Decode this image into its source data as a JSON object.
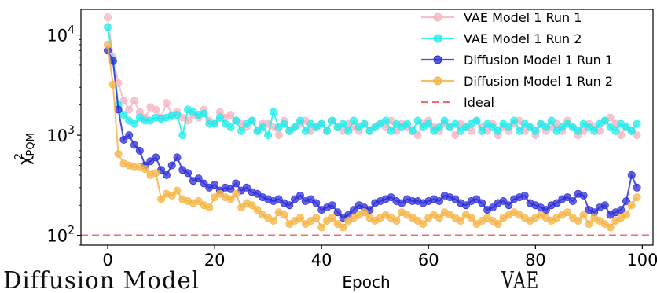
{
  "chart_data": {
    "type": "line",
    "title": "",
    "xlabel": "Epoch",
    "ylabel": "χ²PQM",
    "ylabel_main": "χ",
    "ylabel_sup": "2",
    "ylabel_sub": "PQM",
    "xlim": [
      -5,
      102
    ],
    "ylim": [
      80,
      18000
    ],
    "yscale": "log",
    "x_ticks": [
      0,
      20,
      40,
      60,
      80,
      100
    ],
    "x_tick_labels": [
      "0",
      "20",
      "40",
      "60",
      "80",
      "100"
    ],
    "y_ticks": [
      100,
      1000,
      10000
    ],
    "y_tick_base": [
      "10",
      "10",
      "10"
    ],
    "y_tick_exp": [
      "2",
      "3",
      "4"
    ],
    "grid": false,
    "legend_position": "top-right",
    "x": [
      0,
      1,
      2,
      3,
      4,
      5,
      6,
      7,
      8,
      9,
      10,
      11,
      12,
      13,
      14,
      15,
      16,
      17,
      18,
      19,
      20,
      21,
      22,
      23,
      24,
      25,
      26,
      27,
      28,
      29,
      30,
      31,
      32,
      33,
      34,
      35,
      36,
      37,
      38,
      39,
      40,
      41,
      42,
      43,
      44,
      45,
      46,
      47,
      48,
      49,
      50,
      51,
      52,
      53,
      54,
      55,
      56,
      57,
      58,
      59,
      60,
      61,
      62,
      63,
      64,
      65,
      66,
      67,
      68,
      69,
      70,
      71,
      72,
      73,
      74,
      75,
      76,
      77,
      78,
      79,
      80,
      81,
      82,
      83,
      84,
      85,
      86,
      87,
      88,
      89,
      90,
      91,
      92,
      93,
      94,
      95,
      96,
      97,
      98,
      99
    ],
    "series": [
      {
        "name": "VAE Model 1 Run 1",
        "color": "#f4b6c2",
        "values": [
          15000,
          6000,
          3300,
          2200,
          1800,
          2200,
          1700,
          1500,
          1900,
          1800,
          1500,
          2100,
          1600,
          1700,
          1500,
          1400,
          1600,
          1500,
          1800,
          1400,
          1300,
          1700,
          1500,
          1600,
          1400,
          1300,
          1200,
          1400,
          1100,
          1300,
          1300,
          1200,
          1000,
          1400,
          1100,
          1200,
          1300,
          1400,
          1100,
          1200,
          1300,
          1100,
          1400,
          1200,
          1100,
          1300,
          1200,
          1100,
          1300,
          1100,
          1200,
          1300,
          1200,
          1400,
          1100,
          1300,
          1200,
          1100,
          1000,
          1300,
          1400,
          1200,
          1100,
          1300,
          1200,
          1000,
          1300,
          1200,
          1100,
          1400,
          1200,
          1100,
          1300,
          1000,
          1200,
          1100,
          1300,
          1400,
          1100,
          1200,
          1000,
          1300,
          1100,
          1200,
          1300,
          1100,
          1400,
          1200,
          1000,
          1100,
          1300,
          1200,
          1100,
          1400,
          1500,
          1300,
          1000,
          1200,
          1100,
          1000
        ]
      },
      {
        "name": "VAE Model 1 Run 2",
        "color": "#22ecec",
        "values": [
          12000,
          5500,
          2000,
          1600,
          1400,
          1300,
          1500,
          1400,
          1400,
          1500,
          1450,
          1500,
          1550,
          1600,
          1000,
          1800,
          1700,
          1600,
          1650,
          1300,
          1300,
          1500,
          1300,
          1200,
          1400,
          1100,
          1300,
          1400,
          1100,
          1200,
          1000,
          1700,
          1200,
          1300,
          1100,
          1200,
          1400,
          1100,
          1300,
          1200,
          1300,
          1100,
          1400,
          1200,
          1300,
          1100,
          1400,
          1200,
          1300,
          1100,
          1200,
          1300,
          1400,
          1100,
          1300,
          1200,
          1300,
          1100,
          1400,
          1200,
          1300,
          1100,
          1200,
          1400,
          1200,
          1300,
          1100,
          1200,
          1300,
          1400,
          1100,
          1300,
          1200,
          1100,
          1300,
          1200,
          1400,
          1100,
          1300,
          1200,
          1100,
          1300,
          1200,
          1400,
          1100,
          1200,
          1300,
          1200,
          1100,
          1300,
          1200,
          1100,
          1300,
          1400,
          1200,
          1100,
          1300,
          1200,
          1100,
          1300
        ]
      },
      {
        "name": "Diffusion Model 1 Run 1",
        "color": "#2f2fd8",
        "values": [
          7000,
          5500,
          1800,
          900,
          1000,
          800,
          700,
          500,
          550,
          600,
          450,
          400,
          500,
          600,
          450,
          420,
          350,
          370,
          330,
          300,
          320,
          280,
          300,
          290,
          330,
          280,
          300,
          270,
          260,
          240,
          230,
          220,
          230,
          210,
          200,
          230,
          250,
          220,
          230,
          210,
          180,
          190,
          200,
          170,
          150,
          160,
          180,
          200,
          190,
          180,
          210,
          220,
          230,
          240,
          220,
          210,
          230,
          220,
          220,
          210,
          220,
          230,
          220,
          250,
          240,
          230,
          210,
          200,
          220,
          230,
          210,
          180,
          190,
          210,
          220,
          200,
          230,
          240,
          250,
          210,
          200,
          190,
          180,
          200,
          210,
          230,
          240,
          220,
          260,
          250,
          180,
          170,
          190,
          200,
          160,
          170,
          180,
          220,
          400,
          300
        ]
      },
      {
        "name": "Diffusion Model 1 Run 2",
        "color": "#f5b445",
        "values": [
          8000,
          3200,
          650,
          520,
          500,
          480,
          480,
          460,
          400,
          420,
          230,
          260,
          250,
          280,
          230,
          220,
          210,
          220,
          200,
          190,
          240,
          260,
          240,
          230,
          260,
          190,
          210,
          200,
          180,
          160,
          150,
          140,
          170,
          160,
          130,
          140,
          150,
          130,
          140,
          150,
          120,
          140,
          150,
          130,
          120,
          140,
          150,
          160,
          170,
          150,
          140,
          150,
          160,
          150,
          140,
          170,
          160,
          150,
          140,
          130,
          150,
          160,
          150,
          170,
          160,
          150,
          140,
          160,
          150,
          130,
          140,
          150,
          140,
          130,
          150,
          160,
          170,
          160,
          150,
          140,
          150,
          160,
          150,
          140,
          150,
          160,
          170,
          150,
          140,
          160,
          130,
          150,
          140,
          130,
          120,
          140,
          150,
          160,
          200,
          240
        ]
      }
    ],
    "reference_lines": [
      {
        "name": "Ideal",
        "y": 100,
        "color": "#e8706e",
        "style": "dashed"
      }
    ]
  },
  "captions": {
    "left": "Diffusion Model",
    "right": "VAE"
  }
}
